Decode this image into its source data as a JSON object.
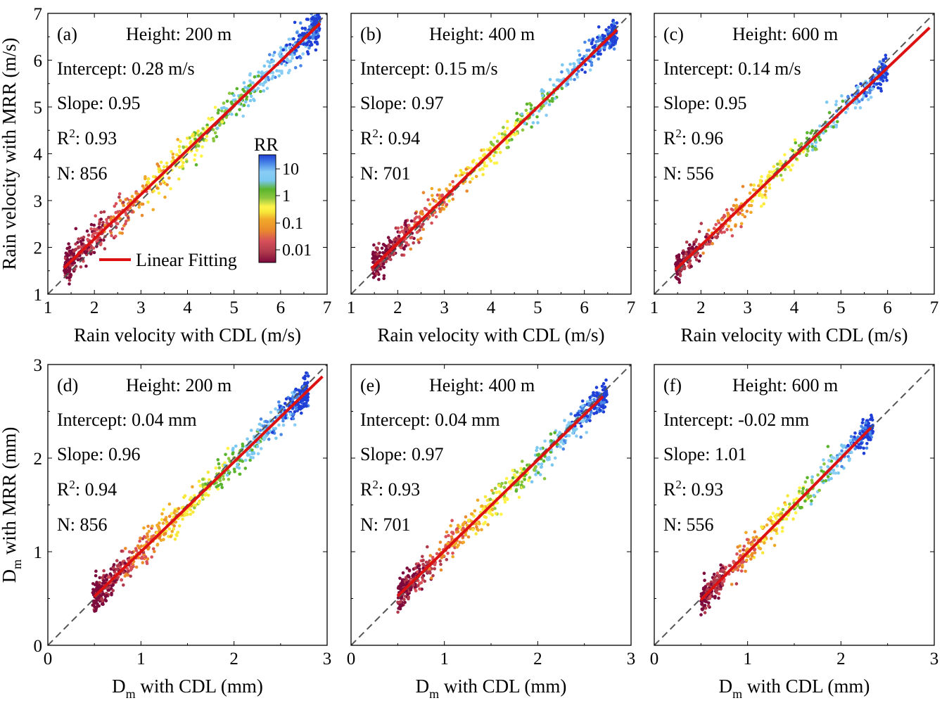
{
  "figure": {
    "colorbar": {
      "title": "RR",
      "ticks": [
        "10",
        "1",
        "0.1",
        "0.01"
      ],
      "colors": [
        "#7d0a3c",
        "#b03a4c",
        "#d7505a",
        "#ea8a2c",
        "#f1a92a",
        "#f7e83a",
        "#fff34a",
        "#8dc63f",
        "#5ab42d",
        "#7ac8f0",
        "#89cdf5",
        "#4a88e8",
        "#1f3fd6"
      ]
    },
    "legend": {
      "label": "Linear Fitting",
      "color": "#dd1111"
    }
  },
  "chart_data": [
    {
      "type": "scatter",
      "panel": "(a)",
      "height": "Height: 200 m",
      "intercept_text": "Intercept: 0.28 m/s",
      "slope_text": "Slope: 0.95",
      "r2_prefix": "R",
      "r2_value": ": 0.93",
      "n_text": "N: 856",
      "xlabel": "Rain velocity with CDL (m/s)",
      "ylabel": "Rain velocity with MRR (m/s)",
      "xlim": [
        1,
        7
      ],
      "ylim": [
        1,
        7
      ],
      "xticks": [
        "1",
        "2",
        "3",
        "4",
        "5",
        "6",
        "7"
      ],
      "yticks": [
        "1",
        "2",
        "3",
        "4",
        "5",
        "6",
        "7"
      ],
      "fit": {
        "intercept": 0.28,
        "slope": 0.95,
        "x_range": [
          1.35,
          6.85
        ]
      },
      "points": {
        "n": 856,
        "x_range": [
          1.35,
          6.85
        ],
        "noise": 0.17
      }
    },
    {
      "type": "scatter",
      "panel": "(b)",
      "height": "Height: 400 m",
      "intercept_text": "Intercept: 0.15 m/s",
      "slope_text": "Slope: 0.97",
      "r2_prefix": "R",
      "r2_value": ": 0.94",
      "n_text": "N: 701",
      "xlabel": "Rain velocity with CDL (m/s)",
      "ylabel": "",
      "xlim": [
        1,
        7
      ],
      "ylim": [
        1,
        7
      ],
      "xticks": [
        "1",
        "2",
        "3",
        "4",
        "5",
        "6",
        "7"
      ],
      "yticks": [],
      "fit": {
        "intercept": 0.15,
        "slope": 0.97,
        "x_range": [
          1.45,
          6.7
        ]
      },
      "points": {
        "n": 701,
        "x_range": [
          1.45,
          6.7
        ],
        "noise": 0.16
      }
    },
    {
      "type": "scatter",
      "panel": "(c)",
      "height": "Height: 600 m",
      "intercept_text": "Intercept: 0.14 m/s",
      "slope_text": "Slope: 0.95",
      "r2_prefix": "R",
      "r2_value": ": 0.96",
      "n_text": "N: 556",
      "xlabel": "Rain velocity with CDL (m/s)",
      "ylabel": "",
      "xlim": [
        1,
        7
      ],
      "ylim": [
        1,
        7
      ],
      "xticks": [
        "1",
        "2",
        "3",
        "4",
        "5",
        "6",
        "7"
      ],
      "yticks": [],
      "fit": {
        "intercept": 0.14,
        "slope": 0.95,
        "x_range": [
          1.45,
          6.9
        ]
      },
      "points": {
        "n": 556,
        "x_range": [
          1.45,
          6.0
        ],
        "noise": 0.14
      }
    },
    {
      "type": "scatter",
      "panel": "(d)",
      "height": "Height: 200 m",
      "intercept_text": "Intercept: 0.04 mm",
      "slope_text": "Slope: 0.96",
      "r2_prefix": "R",
      "r2_value": ": 0.94",
      "n_text": "N: 856",
      "xlabel_main": "D",
      "xlabel_sub": "m",
      "xlabel_rest": " with CDL (mm)",
      "ylabel_main": "D",
      "ylabel_sub": "m",
      "ylabel_rest": " with MRR (mm)",
      "xlim": [
        0,
        3
      ],
      "ylim": [
        0,
        3
      ],
      "xticks": [
        "0",
        "1",
        "2",
        "3"
      ],
      "yticks": [
        "0",
        "1",
        "2",
        "3"
      ],
      "fit": {
        "intercept": 0.04,
        "slope": 0.96,
        "x_range": [
          0.5,
          2.95
        ]
      },
      "points": {
        "n": 856,
        "x_range": [
          0.48,
          2.8
        ],
        "noise": 0.08
      }
    },
    {
      "type": "scatter",
      "panel": "(e)",
      "height": "Height: 400 m",
      "intercept_text": "Intercept: 0.04 mm",
      "slope_text": "Slope: 0.97",
      "r2_prefix": "R",
      "r2_value": ": 0.93",
      "n_text": "N: 701",
      "xlabel_main": "D",
      "xlabel_sub": "m",
      "xlabel_rest": " with CDL (mm)",
      "xlim": [
        0,
        3
      ],
      "ylim": [
        0,
        3
      ],
      "xticks": [
        "0",
        "1",
        "2",
        "3"
      ],
      "yticks": [],
      "fit": {
        "intercept": 0.04,
        "slope": 0.97,
        "x_range": [
          0.5,
          2.7
        ]
      },
      "points": {
        "n": 701,
        "x_range": [
          0.5,
          2.75
        ],
        "noise": 0.08
      }
    },
    {
      "type": "scatter",
      "panel": "(f)",
      "height": "Height: 600 m",
      "intercept_text": "Intercept: -0.02 mm",
      "slope_text": "Slope: 1.01",
      "r2_prefix": "R",
      "r2_value": ": 0.93",
      "n_text": "N: 556",
      "xlabel_main": "D",
      "xlabel_sub": "m",
      "xlabel_rest": " with CDL (mm)",
      "xlim": [
        0,
        3
      ],
      "ylim": [
        0,
        3
      ],
      "xticks": [
        "0",
        "1",
        "2",
        "3"
      ],
      "yticks": [],
      "fit": {
        "intercept": -0.02,
        "slope": 1.01,
        "x_range": [
          0.5,
          2.32
        ]
      },
      "points": {
        "n": 556,
        "x_range": [
          0.5,
          2.35
        ],
        "noise": 0.07
      }
    }
  ]
}
